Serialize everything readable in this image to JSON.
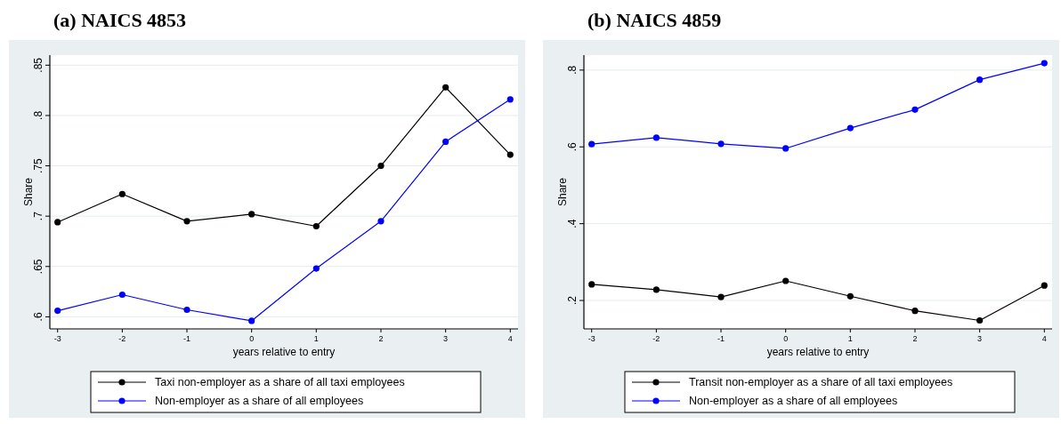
{
  "chart_data": [
    {
      "type": "line",
      "title": "(a) NAICS 4853",
      "xlabel": "years relative to entry",
      "ylabel": "Share",
      "x": [
        -3,
        -2,
        -1,
        0,
        1,
        2,
        3,
        4
      ],
      "series": [
        {
          "name": "Taxi non-employer as a share of all taxi employees",
          "color": "#000000",
          "values": [
            0.694,
            0.722,
            0.695,
            0.702,
            0.69,
            0.75,
            0.828,
            0.761
          ]
        },
        {
          "name": "Non-employer as a share of all employees",
          "color": "#0000ff",
          "values": [
            0.606,
            0.622,
            0.607,
            0.596,
            0.648,
            0.695,
            0.774,
            0.816
          ]
        }
      ],
      "xlim": [
        -3.12,
        4.12
      ],
      "xticks": [
        -3,
        -2,
        -1,
        0,
        1,
        2,
        3,
        4
      ],
      "ylim": [
        0.588,
        0.86
      ],
      "yticks": [
        {
          "value": 0.6,
          "label": ".6"
        },
        {
          "value": 0.65,
          "label": ".65"
        },
        {
          "value": 0.7,
          "label": ".7"
        },
        {
          "value": 0.75,
          "label": ".75"
        },
        {
          "value": 0.8,
          "label": ".8"
        },
        {
          "value": 0.85,
          "label": ".85"
        }
      ],
      "grid": "y",
      "legend": "bottom",
      "marker": "circle",
      "line_style": "solid"
    },
    {
      "type": "line",
      "title": "(b) NAICS 4859",
      "xlabel": "years relative to entry",
      "ylabel": "Share",
      "x": [
        -3,
        -2,
        -1,
        0,
        1,
        2,
        3,
        4
      ],
      "series": [
        {
          "name": "Transit non-employer as a share of all taxi employees",
          "color": "#000000",
          "values": [
            0.242,
            0.228,
            0.209,
            0.251,
            0.211,
            0.173,
            0.148,
            0.239
          ]
        },
        {
          "name": "Non-employer as a share of all employees",
          "color": "#0000ff",
          "values": [
            0.607,
            0.624,
            0.608,
            0.596,
            0.649,
            0.697,
            0.775,
            0.818
          ]
        }
      ],
      "xlim": [
        -3.12,
        4.12
      ],
      "xticks": [
        -3,
        -2,
        -1,
        0,
        1,
        2,
        3,
        4
      ],
      "ylim": [
        0.126,
        0.839
      ],
      "yticks": [
        {
          "value": 0.2,
          "label": ".2"
        },
        {
          "value": 0.4,
          "label": ".4"
        },
        {
          "value": 0.6,
          "label": ".6"
        },
        {
          "value": 0.8,
          "label": ".8"
        }
      ],
      "grid": "y",
      "legend": "bottom",
      "marker": "circle",
      "line_style": "solid"
    }
  ]
}
